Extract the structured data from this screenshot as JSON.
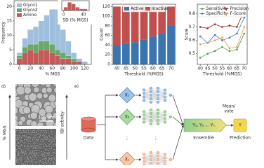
{
  "chart_data": [
    {
      "type": "histogram",
      "ylabel": "Frequency",
      "xlabel": "% MGS",
      "bins": [
        -5,
        5,
        15,
        25,
        35,
        45,
        55,
        65,
        75,
        85,
        95,
        105,
        115,
        125
      ],
      "series": [
        {
          "name": "Amino",
          "color": "#c55a5a",
          "values": [
            2,
            4,
            5,
            4,
            5,
            5,
            4,
            3,
            2,
            2,
            1,
            1,
            0
          ]
        },
        {
          "name": "Glyco2",
          "color": "#6aa86a",
          "values": [
            1,
            2,
            2,
            3,
            3,
            3,
            3,
            2,
            2,
            1,
            1,
            0,
            0
          ]
        },
        {
          "name": "Glyco1",
          "color": "#9fbfdc",
          "values": [
            1,
            3,
            5,
            6,
            7,
            9,
            12,
            14,
            8,
            5,
            2,
            1,
            1
          ]
        }
      ],
      "legend_order": [
        2,
        1,
        0
      ],
      "xlim": [
        -10,
        132
      ],
      "ylim": [
        0,
        22
      ],
      "xticks": [
        0,
        20,
        40,
        60,
        80,
        100,
        120
      ],
      "yticks": [
        0,
        5,
        10,
        15,
        20
      ],
      "legend": "upper left"
    },
    {
      "type": "histogram",
      "xlabel": "SD (% MGS)",
      "color": "#c55a5a",
      "bins": [
        0,
        8,
        16,
        24,
        32,
        40,
        48
      ],
      "values": [
        2,
        5,
        4,
        2,
        1,
        1
      ],
      "xlim": [
        -4,
        52
      ],
      "ylim": [
        0,
        6
      ],
      "xticks": [
        0,
        40
      ]
    },
    {
      "type": "stacked_bar",
      "ylabel": "Count",
      "xlabel": "Threshold (%MGS)",
      "categories": [
        "40",
        "45",
        "50",
        "55",
        "60",
        "65",
        "70"
      ],
      "series": [
        {
          "name": "Active",
          "color": "#3a75b0",
          "values": [
            40,
            44,
            46,
            52,
            58,
            64,
            80
          ]
        },
        {
          "name": "Inactive",
          "color": "#c0504d",
          "values": [
            80,
            76,
            74,
            68,
            62,
            56,
            40
          ]
        }
      ],
      "ylim": [
        0,
        125
      ],
      "yticks": [
        0,
        20,
        40,
        60,
        80,
        100,
        120
      ],
      "legend": "upper center",
      "legend_columns": 2
    },
    {
      "type": "line",
      "ylabel": "Score",
      "xlabel": "Threshold (%MGS)",
      "x": [
        40,
        45,
        50,
        55,
        60,
        65,
        70
      ],
      "series": [
        {
          "name": "Sensitivity",
          "color": "#4a9a4a",
          "values": [
            0.47,
            0.5,
            0.52,
            0.55,
            0.52,
            0.53,
            0.65
          ]
        },
        {
          "name": "Specificity",
          "color": "#3c78b4",
          "values": [
            0.63,
            0.58,
            0.64,
            0.6,
            0.62,
            0.65,
            0.77
          ]
        },
        {
          "name": "Precision",
          "color": "#8b1e1e",
          "values": [
            0.7,
            0.69,
            0.72,
            0.7,
            0.71,
            0.7,
            0.82
          ]
        },
        {
          "name": "F-Score",
          "color": "#e69a3c",
          "values": [
            0.57,
            0.58,
            0.6,
            0.62,
            0.54,
            0.55,
            0.7
          ]
        }
      ],
      "xlim": [
        38,
        72
      ],
      "ylim": [
        0.42,
        0.87
      ],
      "xticks": [
        40,
        45,
        50,
        55,
        60,
        65,
        70
      ],
      "yticks": [
        0.5,
        0.6,
        0.7,
        0.8
      ],
      "legend": "upper center",
      "legend_columns": 2
    }
  ],
  "panel_d": {
    "label": "d)",
    "left_axis": "% MGS",
    "scale_bar": "100 μm",
    "right_axis": "IBI activity"
  },
  "panel_e": {
    "label": "e)",
    "data": "Data",
    "inputs": [
      "X₁",
      "X₂",
      "Xₙ"
    ],
    "ellipsis": "⋮",
    "ensemble_box": "Y₁, Y₂ ... Yₙ",
    "ensemble": "Ensemble",
    "combine": [
      "Mean/",
      "vote"
    ],
    "output": "Y",
    "prediction": "Prediction"
  }
}
